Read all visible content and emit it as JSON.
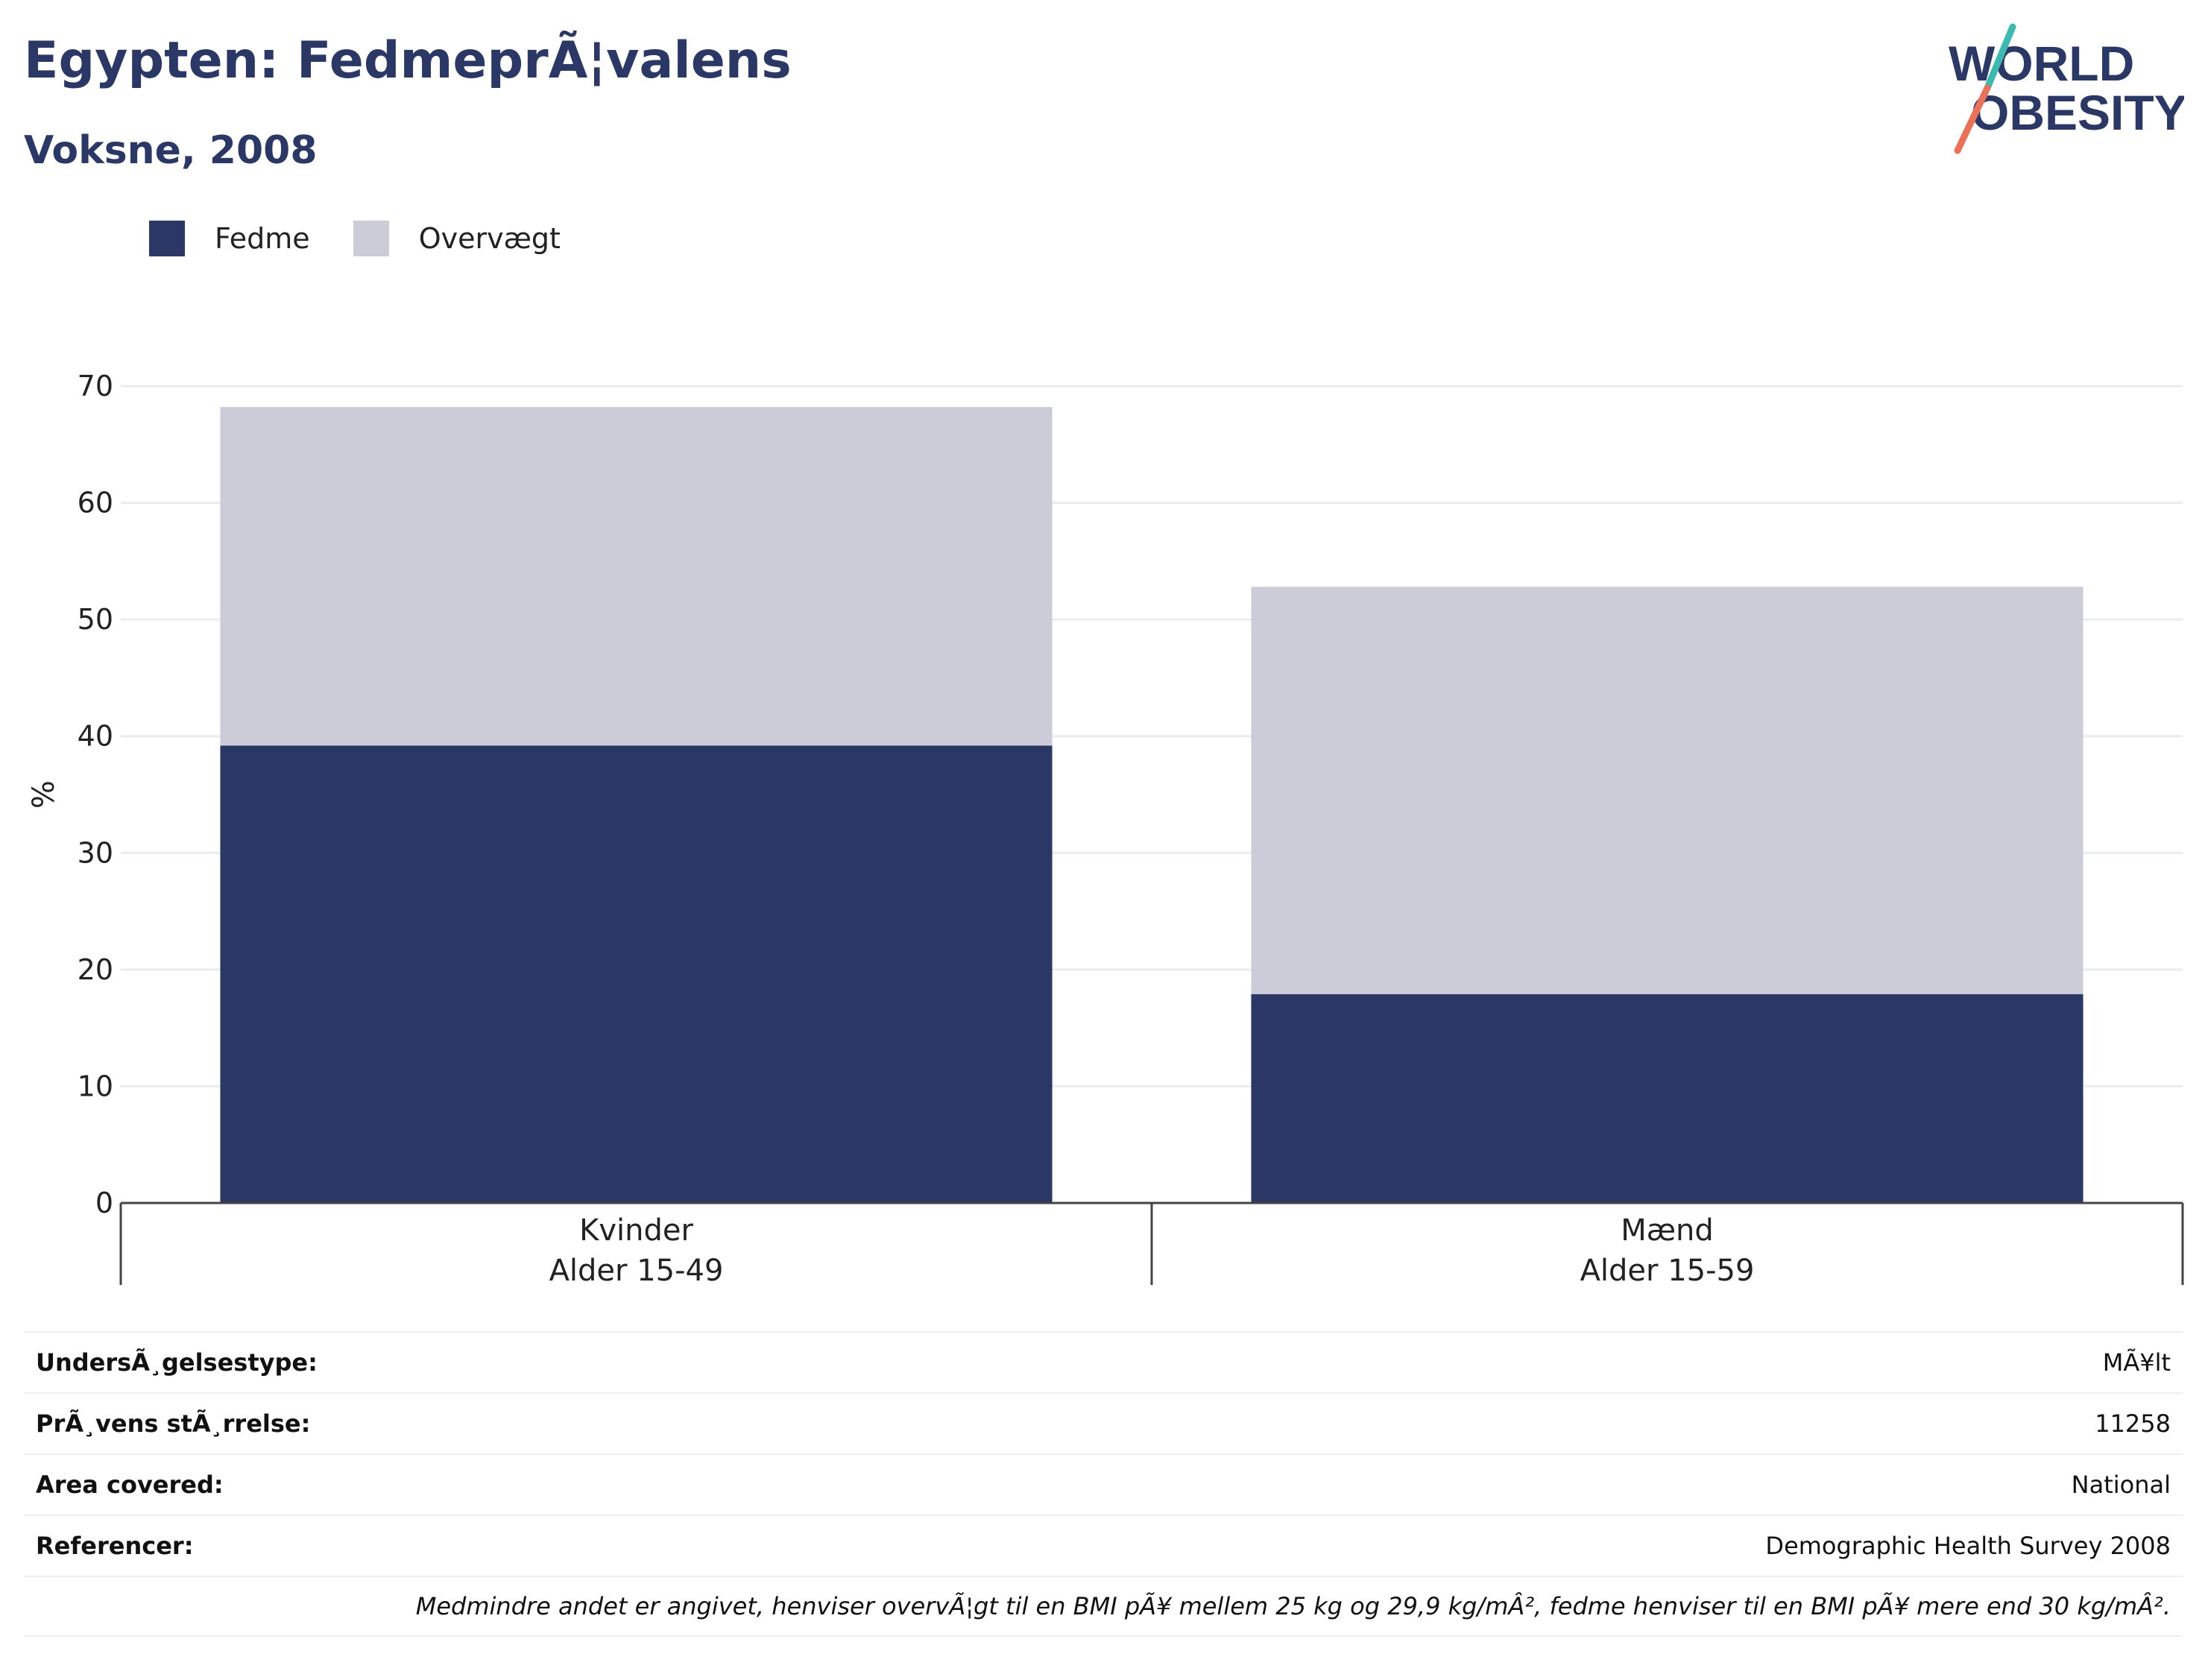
{
  "header": {
    "title": "Egypten: FedmeprÃ¦valens",
    "subtitle": "Voksne, 2008"
  },
  "logo": {
    "line1": "WORLD",
    "line2": "OBESITY",
    "accent_teal": "#3fb8af",
    "accent_coral": "#e8735a"
  },
  "colors": {
    "fedme": "#2b3764",
    "overvaegt": "#cbccd8",
    "text": "#2b3764"
  },
  "chart_data": {
    "type": "bar",
    "stacked": true,
    "categories": [
      {
        "line1": "Kvinder",
        "line2": "Alder 15-49"
      },
      {
        "line1": "Mænd",
        "line2": "Alder 15-59"
      }
    ],
    "series": [
      {
        "name": "Fedme",
        "values": [
          39.2,
          17.9
        ]
      },
      {
        "name": "Overvægt",
        "values": [
          29.0,
          34.9
        ]
      }
    ],
    "ylabel": "%",
    "ylim": [
      0,
      70
    ],
    "yticks": [
      0,
      10,
      20,
      30,
      40,
      50,
      60,
      70
    ],
    "grid": true,
    "legend_position": "top-left"
  },
  "info": [
    {
      "label": "UndersÃ¸gelsestype:",
      "value": "MÃ¥lt"
    },
    {
      "label": "PrÃ¸vens stÃ¸rrelse:",
      "value": "11258"
    },
    {
      "label": "Area covered:",
      "value": "National"
    },
    {
      "label": "Referencer:",
      "value": "Demographic Health Survey 2008"
    }
  ],
  "note": "Medmindre andet er angivet, henviser overvÃ¦gt til en BMI pÃ¥ mellem 25 kg og 29,9 kg/mÂ², fedme henviser til en BMI pÃ¥ mere end 30 kg/mÂ²."
}
